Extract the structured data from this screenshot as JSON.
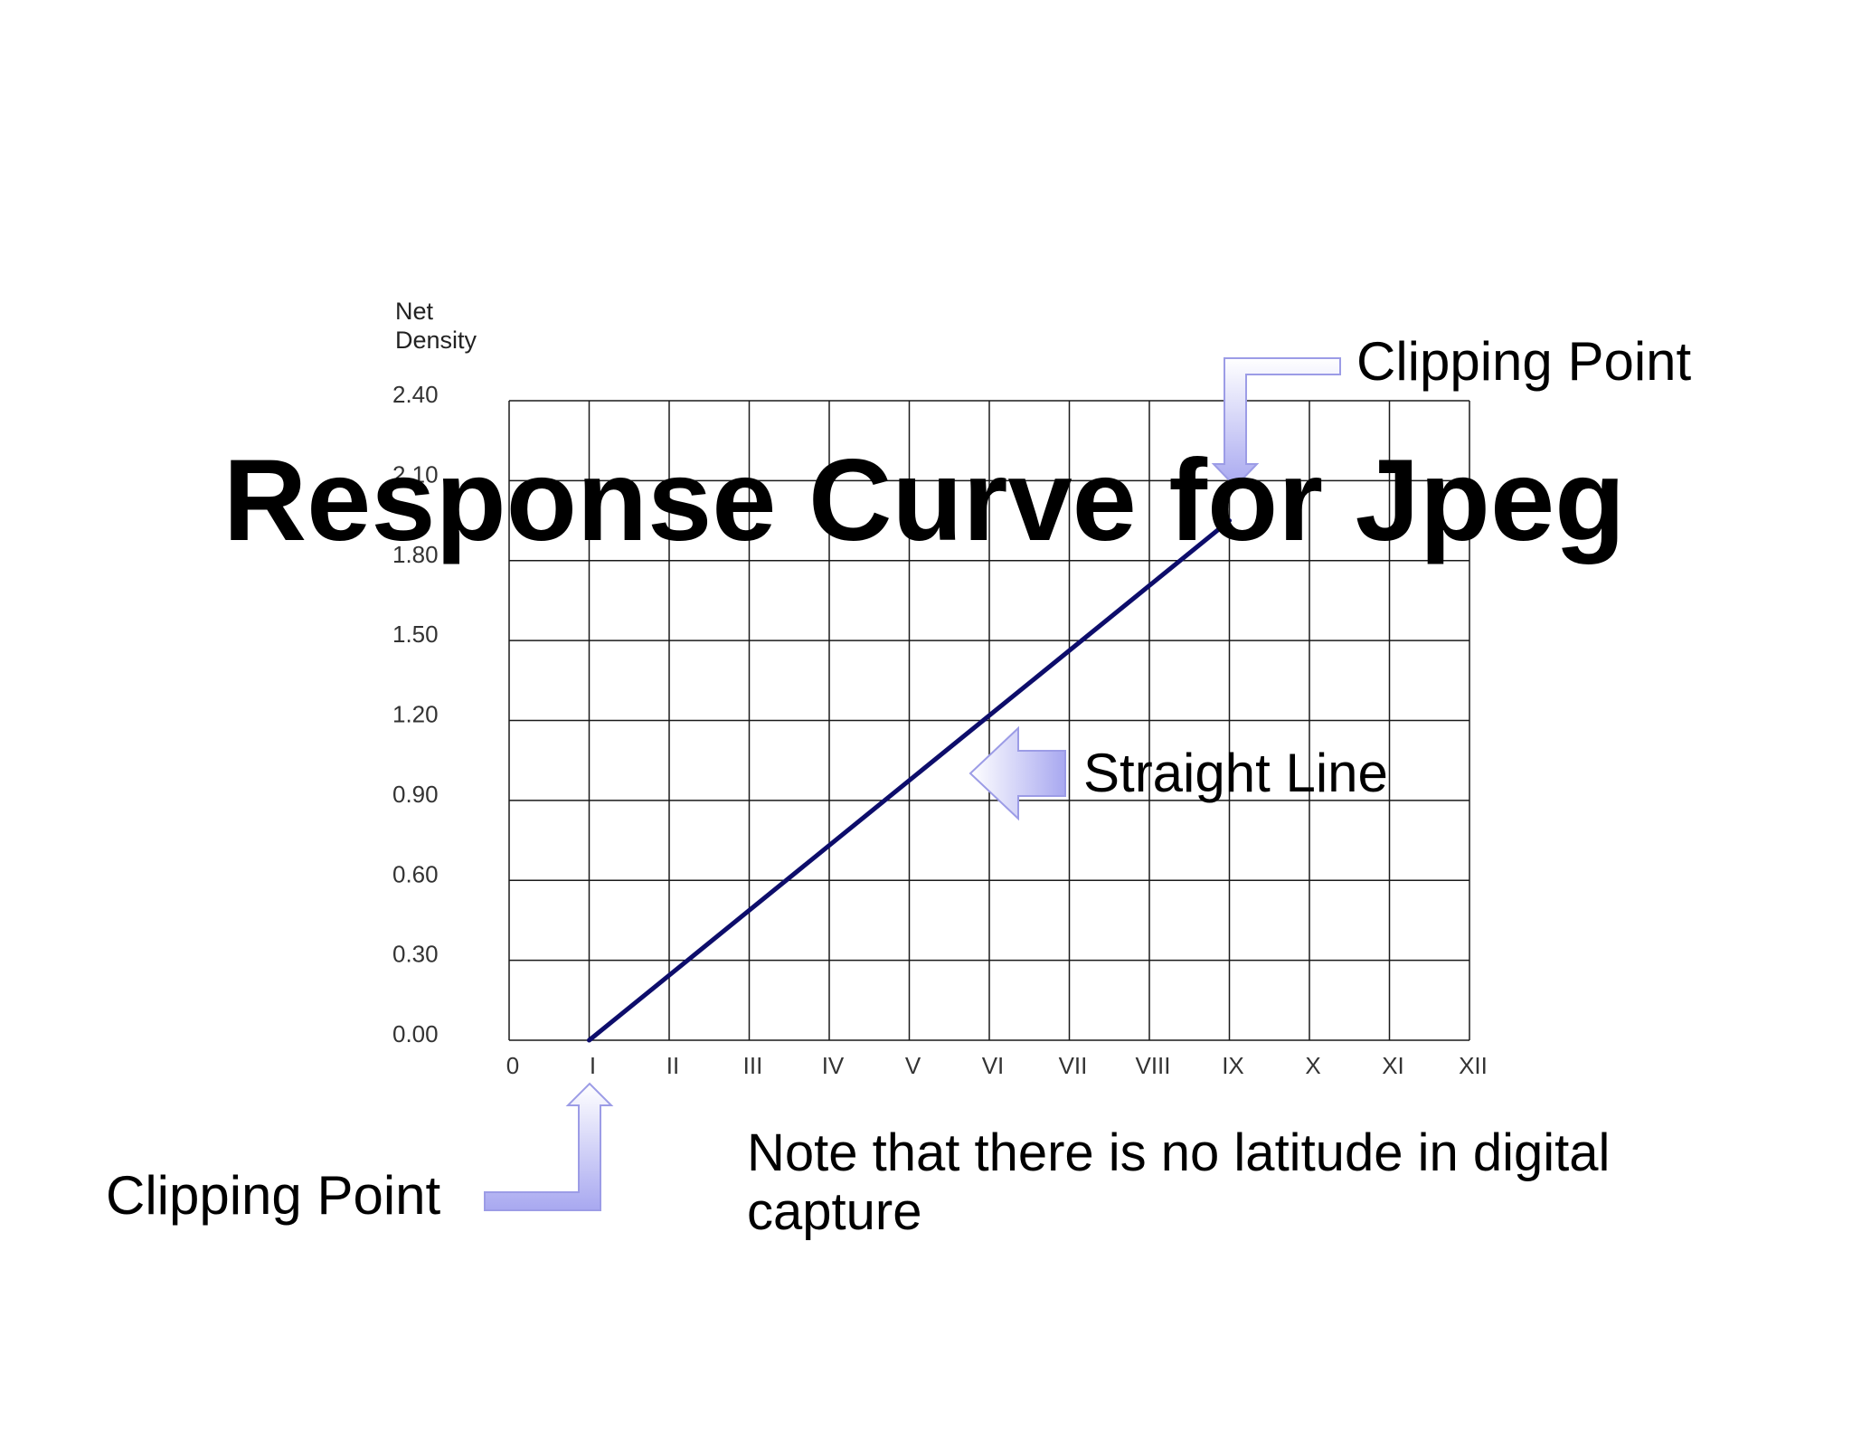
{
  "title": "Response Curve for Jpeg",
  "chart_data": {
    "type": "line",
    "ylabel": [
      "Net",
      "Density"
    ],
    "xlabel": "",
    "x_ticks": [
      "0",
      "I",
      "II",
      "III",
      "IV",
      "V",
      "VI",
      "VII",
      "VIII",
      "IX",
      "X",
      "XI",
      "XII"
    ],
    "y_ticks": [
      "0.00",
      "0.30",
      "0.60",
      "0.90",
      "1.20",
      "1.50",
      "1.80",
      "2.10",
      "2.40"
    ],
    "xlim": [
      0,
      12
    ],
    "ylim": [
      0,
      2.4
    ],
    "grid": true,
    "series": [
      {
        "x": [
          1,
          9
        ],
        "y": [
          0.0,
          1.95
        ],
        "color": "#0d0d6b"
      }
    ]
  },
  "annotations": {
    "clipping_point_top": "Clipping Point",
    "clipping_point_bottom": "Clipping Point",
    "straight_line": "Straight Line",
    "note_line1": "Note that there is no latitude in digital",
    "note_line2": "capture"
  },
  "colors": {
    "arrow_fill_light": "#ffffff",
    "arrow_fill_dark": "#a8a8f0",
    "line": "#0d0d6b"
  }
}
